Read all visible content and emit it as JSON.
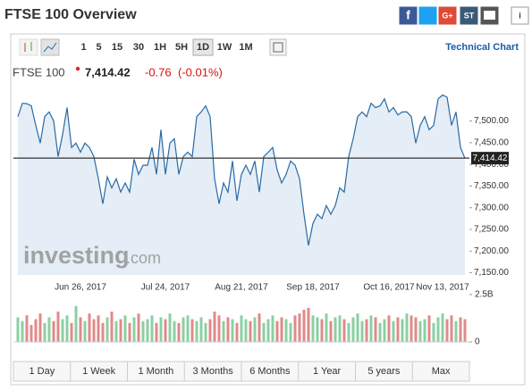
{
  "header": {
    "title": "FTSE 100 Overview",
    "share": {
      "facebook": "f",
      "google": "G+",
      "stocktwits": "ST",
      "info": "i"
    }
  },
  "toolbar": {
    "intervals": [
      "1",
      "5",
      "15",
      "30",
      "1H",
      "5H",
      "1D",
      "1W",
      "1M"
    ],
    "active_interval": 6,
    "link": "Technical Chart"
  },
  "quote": {
    "name": "FTSE 100",
    "change": "-0.76",
    "change_pct": "(-0.01%)"
  },
  "watermark": {
    "brand": "investing",
    "suffix": ".com"
  },
  "chart_data": {
    "type": "line",
    "categories": [
      null,
      null,
      null,
      null,
      null,
      null,
      null,
      null,
      null,
      null,
      null,
      null,
      null,
      null,
      "Jun 26, 2017",
      null,
      null,
      null,
      null,
      null,
      null,
      null,
      null,
      null,
      null,
      null,
      null,
      null,
      null,
      null,
      null,
      null,
      null,
      "Jul 24, 2017",
      null,
      null,
      null,
      null,
      null,
      null,
      null,
      null,
      null,
      null,
      null,
      null,
      null,
      null,
      null,
      null,
      "Aug 21, 2017",
      null,
      null,
      null,
      null,
      null,
      null,
      null,
      null,
      null,
      null,
      null,
      null,
      null,
      null,
      null,
      "Sep 18, 2017",
      null,
      null,
      null,
      null,
      null,
      null,
      null,
      null,
      null,
      null,
      null,
      null,
      null,
      null,
      null,
      null,
      "Oct 16, 2017",
      null,
      null,
      null,
      null,
      null,
      null,
      null,
      null,
      null,
      null,
      null,
      "Nov 13, 2017",
      null,
      null,
      null,
      null,
      null
    ],
    "values": [
      7510,
      7541,
      7540,
      7535,
      7490,
      7449,
      7510,
      7521,
      7500,
      7418,
      7469,
      7531,
      7439,
      7449,
      7428,
      7449,
      7439,
      7418,
      7367,
      7309,
      7371,
      7346,
      7367,
      7336,
      7357,
      7336,
      7412,
      7377,
      7398,
      7398,
      7439,
      7377,
      7480,
      7377,
      7449,
      7459,
      7377,
      7418,
      7428,
      7418,
      7510,
      7521,
      7535,
      7510,
      7367,
      7309,
      7357,
      7336,
      7408,
      7316,
      7377,
      7398,
      7377,
      7408,
      7336,
      7418,
      7428,
      7439,
      7387,
      7357,
      7377,
      7408,
      7398,
      7367,
      7285,
      7213,
      7264,
      7285,
      7275,
      7305,
      7285,
      7305,
      7346,
      7336,
      7418,
      7459,
      7510,
      7521,
      7510,
      7541,
      7531,
      7535,
      7551,
      7521,
      7531,
      7514,
      7521,
      7521,
      7510,
      7449,
      7490,
      7510,
      7480,
      7490,
      7551,
      7560,
      7555,
      7490,
      7521,
      7439,
      7414
    ],
    "color": "#2a6aa3",
    "fill": "#e5eef6",
    "ylim": [
      7145,
      7565
    ],
    "yticks": [
      {
        "value": 7150,
        "label": "7,150.00"
      },
      {
        "value": 7200,
        "label": "7,200.00"
      },
      {
        "value": 7250,
        "label": "7,250.00"
      },
      {
        "value": 7300,
        "label": "7,300.00"
      },
      {
        "value": 7350,
        "label": "7,350.00"
      },
      {
        "value": 7400,
        "label": "7,400.00"
      },
      {
        "value": 7450,
        "label": "7,450.00"
      },
      {
        "value": 7500,
        "label": "7,500.00"
      }
    ],
    "last": {
      "value": 7414.42,
      "label": "7,414.42"
    },
    "volume": {
      "values": [
        1.3,
        1.1,
        1.4,
        0.9,
        1.2,
        1.5,
        1.0,
        1.3,
        1.1,
        1.6,
        1.2,
        1.4,
        1.0,
        1.9,
        1.3,
        1.1,
        1.5,
        1.2,
        1.4,
        1.0,
        1.3,
        1.6,
        1.1,
        1.2,
        1.4,
        1.0,
        1.3,
        1.5,
        1.1,
        1.2,
        1.4,
        1.0,
        1.3,
        1.2,
        1.5,
        1.1,
        1.0,
        1.3,
        1.4,
        1.2,
        1.1,
        1.3,
        1.0,
        1.2,
        1.6,
        1.4,
        1.1,
        1.3,
        1.2,
        1.0,
        1.4,
        1.2,
        1.1,
        1.3,
        1.5,
        1.0,
        1.2,
        1.4,
        1.1,
        1.3,
        1.2,
        1.0,
        1.4,
        1.5,
        1.7,
        1.8,
        1.4,
        1.3,
        1.2,
        1.5,
        1.1,
        1.3,
        1.4,
        1.2,
        1.0,
        1.3,
        1.5,
        1.1,
        1.2,
        1.4,
        1.3,
        1.0,
        1.2,
        1.4,
        1.1,
        1.3,
        1.2,
        1.5,
        1.4,
        1.3,
        1.1,
        1.2,
        1.4,
        1.0,
        1.3,
        1.5,
        1.2,
        1.4,
        1.1,
        1.3,
        1.2
      ],
      "ylim": [
        0,
        2.5
      ],
      "yticks": [
        0,
        {
          "value": 2.5,
          "label": "2.5B"
        }
      ],
      "up_color": "#8ccfa3",
      "down_color": "#e08a8a"
    }
  },
  "ranges": [
    "1 Day",
    "1 Week",
    "1 Month",
    "3 Months",
    "6 Months",
    "1 Year",
    "5 years",
    "Max"
  ]
}
